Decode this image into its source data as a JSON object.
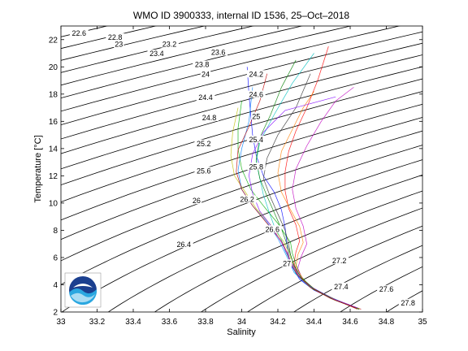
{
  "chart_data": {
    "type": "line",
    "title": "WMO ID 3900333, internal ID 1536, 25–Oct–2018",
    "xlabel": "Salinity",
    "ylabel": "Temperature [°C]",
    "xlim": [
      33,
      35
    ],
    "ylim": [
      2,
      23
    ],
    "xticks": [
      "33",
      "33.2",
      "33.4",
      "33.6",
      "33.8",
      "34",
      "34.2",
      "34.4",
      "34.6",
      "34.8",
      "35"
    ],
    "yticks": [
      "2",
      "4",
      "6",
      "8",
      "10",
      "12",
      "14",
      "16",
      "18",
      "20",
      "22"
    ],
    "grid": false,
    "density_contours": [
      {
        "label": "22.6",
        "x": 33.1,
        "y": 22.4
      },
      {
        "label": "22.8",
        "x": 33.3,
        "y": 22.1
      },
      {
        "label": "23",
        "x": 33.32,
        "y": 21.6
      },
      {
        "label": "23.2",
        "x": 33.6,
        "y": 21.6
      },
      {
        "label": "23.4",
        "x": 33.53,
        "y": 20.9
      },
      {
        "label": "23.6",
        "x": 33.87,
        "y": 21.0
      },
      {
        "label": "23.8",
        "x": 33.78,
        "y": 20.1
      },
      {
        "label": "24",
        "x": 33.8,
        "y": 19.4
      },
      {
        "label": "24.2",
        "x": 34.08,
        "y": 19.4
      },
      {
        "label": "24.4",
        "x": 33.8,
        "y": 17.7
      },
      {
        "label": "24.6",
        "x": 34.08,
        "y": 17.9
      },
      {
        "label": "24.8",
        "x": 33.82,
        "y": 16.2
      },
      {
        "label": "25",
        "x": 34.08,
        "y": 16.3
      },
      {
        "label": "25.2",
        "x": 33.79,
        "y": 14.3
      },
      {
        "label": "25.4",
        "x": 34.08,
        "y": 14.6
      },
      {
        "label": "25.6",
        "x": 33.79,
        "y": 12.3
      },
      {
        "label": "25.8",
        "x": 34.08,
        "y": 12.6
      },
      {
        "label": "26",
        "x": 33.75,
        "y": 10.1
      },
      {
        "label": "26.2",
        "x": 34.03,
        "y": 10.2
      },
      {
        "label": "26.4",
        "x": 33.68,
        "y": 6.9
      },
      {
        "label": "26.6",
        "x": 34.17,
        "y": 8.0
      },
      {
        "label": "27",
        "x": 34.25,
        "y": 5.5
      },
      {
        "label": "27.2",
        "x": 34.54,
        "y": 5.7
      },
      {
        "label": "27.4",
        "x": 34.55,
        "y": 3.8
      },
      {
        "label": "27.6",
        "x": 34.8,
        "y": 3.6
      },
      {
        "label": "27.8",
        "x": 34.92,
        "y": 2.6
      }
    ],
    "series": [
      {
        "color": "#0000ff",
        "x": [
          34.66,
          34.52,
          34.4,
          34.32,
          34.28,
          34.26,
          34.25,
          34.24,
          34.22,
          34.18,
          34.12,
          34.08,
          34.06,
          34.05,
          34.04,
          34.03
        ],
        "y": [
          2.2,
          2.9,
          3.6,
          4.4,
          5.3,
          6.1,
          7.0,
          8.2,
          9.5,
          10.8,
          12.0,
          13.5,
          15.0,
          16.5,
          18.0,
          20.0
        ]
      },
      {
        "color": "#ff0000",
        "x": [
          34.64,
          34.5,
          34.38,
          34.31,
          34.29,
          34.3,
          34.32,
          34.3,
          34.26,
          34.24,
          34.24,
          34.26,
          34.3,
          34.36,
          34.42,
          34.48
        ],
        "y": [
          2.2,
          3.0,
          3.8,
          4.7,
          5.6,
          6.4,
          7.2,
          8.4,
          9.6,
          10.9,
          12.3,
          13.8,
          15.3,
          17.0,
          19.0,
          21.5
        ]
      },
      {
        "color": "#00aa00",
        "x": [
          34.65,
          34.51,
          34.39,
          34.33,
          34.3,
          34.28,
          34.27,
          34.2,
          34.12,
          34.05,
          34.0,
          33.98,
          33.98,
          34.0
        ],
        "y": [
          2.2,
          2.9,
          3.7,
          4.6,
          5.5,
          6.3,
          7.1,
          8.5,
          9.8,
          11.0,
          12.5,
          14.0,
          15.5,
          17.5
        ]
      },
      {
        "color": "#00bfbf",
        "x": [
          34.63,
          34.49,
          34.37,
          34.3,
          34.27,
          34.24,
          34.22,
          34.18,
          34.15,
          34.12,
          34.1,
          34.08,
          34.1,
          34.18,
          34.28,
          34.4
        ],
        "y": [
          2.3,
          3.1,
          3.9,
          4.8,
          5.7,
          6.5,
          7.3,
          8.3,
          9.4,
          10.6,
          11.8,
          13.0,
          14.5,
          16.5,
          18.8,
          21.0
        ]
      },
      {
        "color": "#bf00bf",
        "x": [
          34.66,
          34.53,
          34.42,
          34.34,
          34.31,
          34.33,
          34.36,
          34.34,
          34.3,
          34.28,
          34.3,
          34.36,
          34.44,
          34.52,
          34.62
        ],
        "y": [
          2.2,
          2.8,
          3.5,
          4.3,
          5.2,
          6.1,
          7.0,
          8.3,
          9.6,
          11.0,
          12.5,
          14.2,
          16.0,
          17.5,
          18.5
        ]
      },
      {
        "color": "#bfbf00",
        "x": [
          34.64,
          34.5,
          34.38,
          34.31,
          34.28,
          34.26,
          34.23,
          34.16,
          34.08,
          34.02,
          33.96,
          33.94,
          33.95,
          33.98
        ],
        "y": [
          2.3,
          3.0,
          3.8,
          4.7,
          5.6,
          6.4,
          7.2,
          8.4,
          9.6,
          10.8,
          12.0,
          13.5,
          15.2,
          17.0
        ]
      },
      {
        "color": "#333333",
        "x": [
          34.65,
          34.52,
          34.4,
          34.33,
          34.29,
          34.27,
          34.26,
          34.24,
          34.2,
          34.16,
          34.12,
          34.14,
          34.2,
          34.3,
          34.38
        ],
        "y": [
          2.2,
          2.9,
          3.7,
          4.5,
          5.4,
          6.2,
          7.0,
          8.0,
          9.2,
          10.4,
          11.8,
          13.3,
          15.0,
          17.0,
          19.5
        ]
      },
      {
        "color": "#0080ff",
        "x": [
          34.63,
          34.48,
          34.36,
          34.29,
          34.26,
          34.23,
          34.2,
          34.14,
          34.06,
          34.0,
          33.98,
          34.0,
          34.04,
          34.06
        ],
        "y": [
          2.3,
          3.1,
          4.0,
          4.9,
          5.8,
          6.6,
          7.4,
          8.6,
          9.8,
          11.0,
          12.4,
          14.0,
          16.0,
          18.5
        ]
      },
      {
        "color": "#ff7f00",
        "x": [
          34.66,
          34.52,
          34.41,
          34.34,
          34.3,
          34.31,
          34.34,
          34.32,
          34.27,
          34.22,
          34.2,
          34.22,
          34.28,
          34.34,
          34.4
        ],
        "y": [
          2.2,
          2.9,
          3.6,
          4.4,
          5.3,
          6.2,
          7.1,
          8.3,
          9.5,
          10.8,
          12.2,
          13.8,
          15.4,
          17.0,
          18.2
        ]
      },
      {
        "color": "#7f00ff",
        "x": [
          34.64,
          34.5,
          34.39,
          34.32,
          34.28,
          34.25,
          34.22,
          34.17,
          34.1,
          34.06,
          34.04,
          34.06,
          34.12,
          34.24,
          34.52
        ],
        "y": [
          2.3,
          3.0,
          3.8,
          4.6,
          5.5,
          6.3,
          7.1,
          8.2,
          9.4,
          10.7,
          12.0,
          13.6,
          15.2,
          16.8,
          17.8
        ]
      },
      {
        "color": "#008000",
        "x": [
          34.65,
          34.51,
          34.4,
          34.33,
          34.29,
          34.27,
          34.25,
          34.22,
          34.18,
          34.14,
          34.1,
          34.08,
          34.1,
          34.16,
          34.22,
          34.3
        ],
        "y": [
          2.2,
          2.9,
          3.7,
          4.5,
          5.4,
          6.2,
          7.0,
          8.1,
          9.3,
          10.5,
          11.8,
          13.2,
          14.8,
          16.5,
          18.5,
          20.5
        ]
      },
      {
        "color": "#c00000",
        "x": [
          34.63,
          34.49,
          34.38,
          34.31,
          34.27,
          34.25,
          34.22,
          34.14,
          34.06,
          34.0,
          33.97,
          33.98,
          34.04,
          34.1,
          34.14
        ],
        "y": [
          2.3,
          3.0,
          3.8,
          4.7,
          5.6,
          6.4,
          7.2,
          8.5,
          9.8,
          11.0,
          12.3,
          13.9,
          15.6,
          17.5,
          19.5
        ]
      }
    ]
  }
}
